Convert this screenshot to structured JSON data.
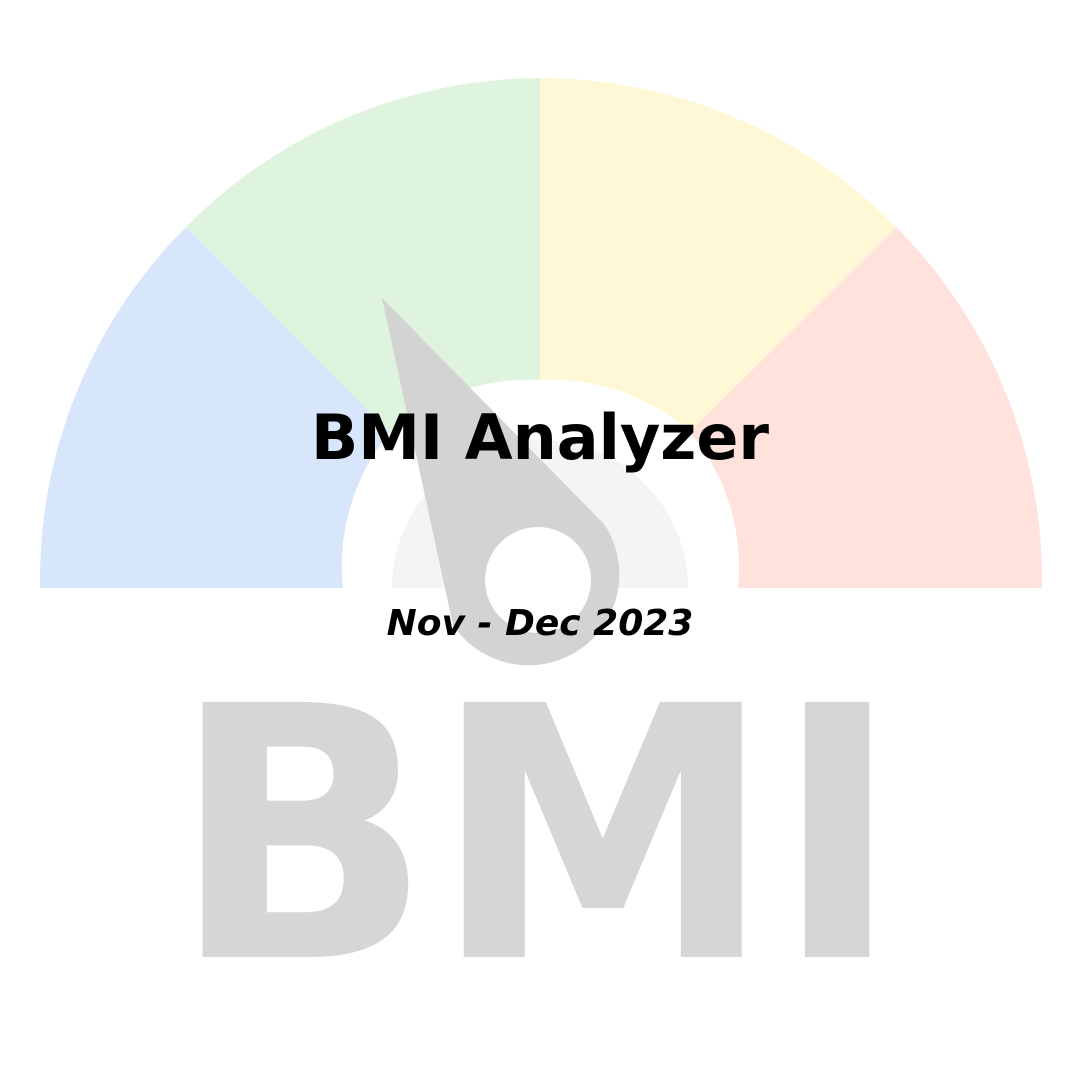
{
  "title": "BMI Analyzer",
  "subtitle": "Nov - Dec 2023",
  "watermark_text": "BMI",
  "gauge": {
    "segment_colors": [
      "#d8e6fb",
      "#dff4de",
      "#fff8d6",
      "#ffe2dc"
    ],
    "hub_color": "#f4f4f4",
    "needle_color": "#d3d3d3"
  },
  "watermark_color": "#d6d6d6"
}
